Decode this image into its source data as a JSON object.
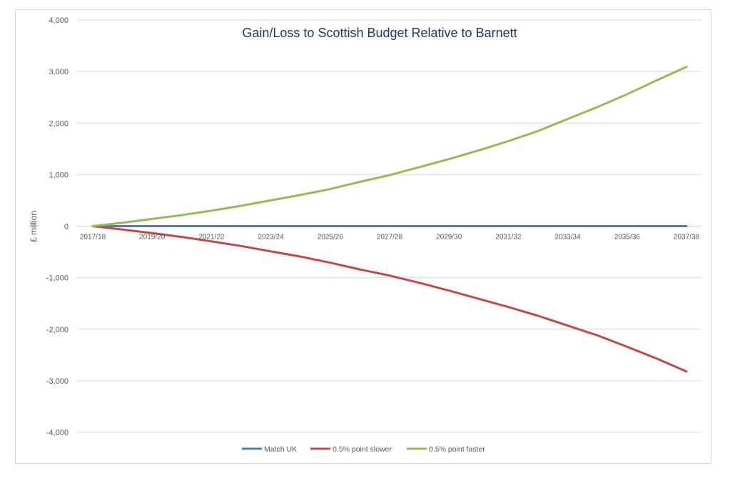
{
  "chart_data": {
    "type": "line",
    "title": "Gain/Loss to Scottish Budget Relative to Barnett",
    "xlabel": "",
    "ylabel": "£ million",
    "ylim": [
      -4000,
      4000
    ],
    "yticks": [
      -4000,
      -3000,
      -2000,
      -1000,
      0,
      1000,
      2000,
      3000,
      4000
    ],
    "ytick_labels": [
      "-4,000",
      "-3,000",
      "-2,000",
      "-1,000",
      "0",
      "1,000",
      "2,000",
      "3,000",
      "4,000"
    ],
    "grid": true,
    "legend_position": "bottom",
    "categories": [
      "2017/18",
      "2018/19",
      "2019/20",
      "2020/21",
      "2021/22",
      "2022/23",
      "2023/24",
      "2024/25",
      "2025/26",
      "2026/27",
      "2027/28",
      "2028/29",
      "2029/30",
      "2030/31",
      "2031/32",
      "2032/33",
      "2033/34",
      "2034/35",
      "2035/36",
      "2036/37",
      "2037/38"
    ],
    "xtick_labels": [
      "2017/18",
      "2019/20",
      "2021/22",
      "2023/24",
      "2025/26",
      "2027/28",
      "2029/30",
      "2031/32",
      "2033/34",
      "2035/36",
      "2037/38"
    ],
    "series": [
      {
        "name": "Match UK",
        "color": "#4a7ebb",
        "values": [
          0,
          0,
          0,
          0,
          0,
          0,
          0,
          0,
          0,
          0,
          0,
          0,
          0,
          0,
          0,
          0,
          0,
          0,
          0,
          0,
          0
        ]
      },
      {
        "name": "0.5% point slower",
        "color": "#be4b48",
        "values": [
          0,
          -65,
          -135,
          -210,
          -295,
          -385,
          -490,
          -590,
          -710,
          -840,
          -960,
          -1100,
          -1250,
          -1410,
          -1570,
          -1740,
          -1930,
          -2120,
          -2340,
          -2570,
          -2820
        ]
      },
      {
        "name": "0.5% point faster",
        "color": "#98b954",
        "values": [
          0,
          65,
          140,
          215,
          300,
          395,
          500,
          605,
          720,
          860,
          990,
          1145,
          1300,
          1470,
          1650,
          1845,
          2080,
          2310,
          2560,
          2830,
          3090
        ]
      }
    ]
  }
}
